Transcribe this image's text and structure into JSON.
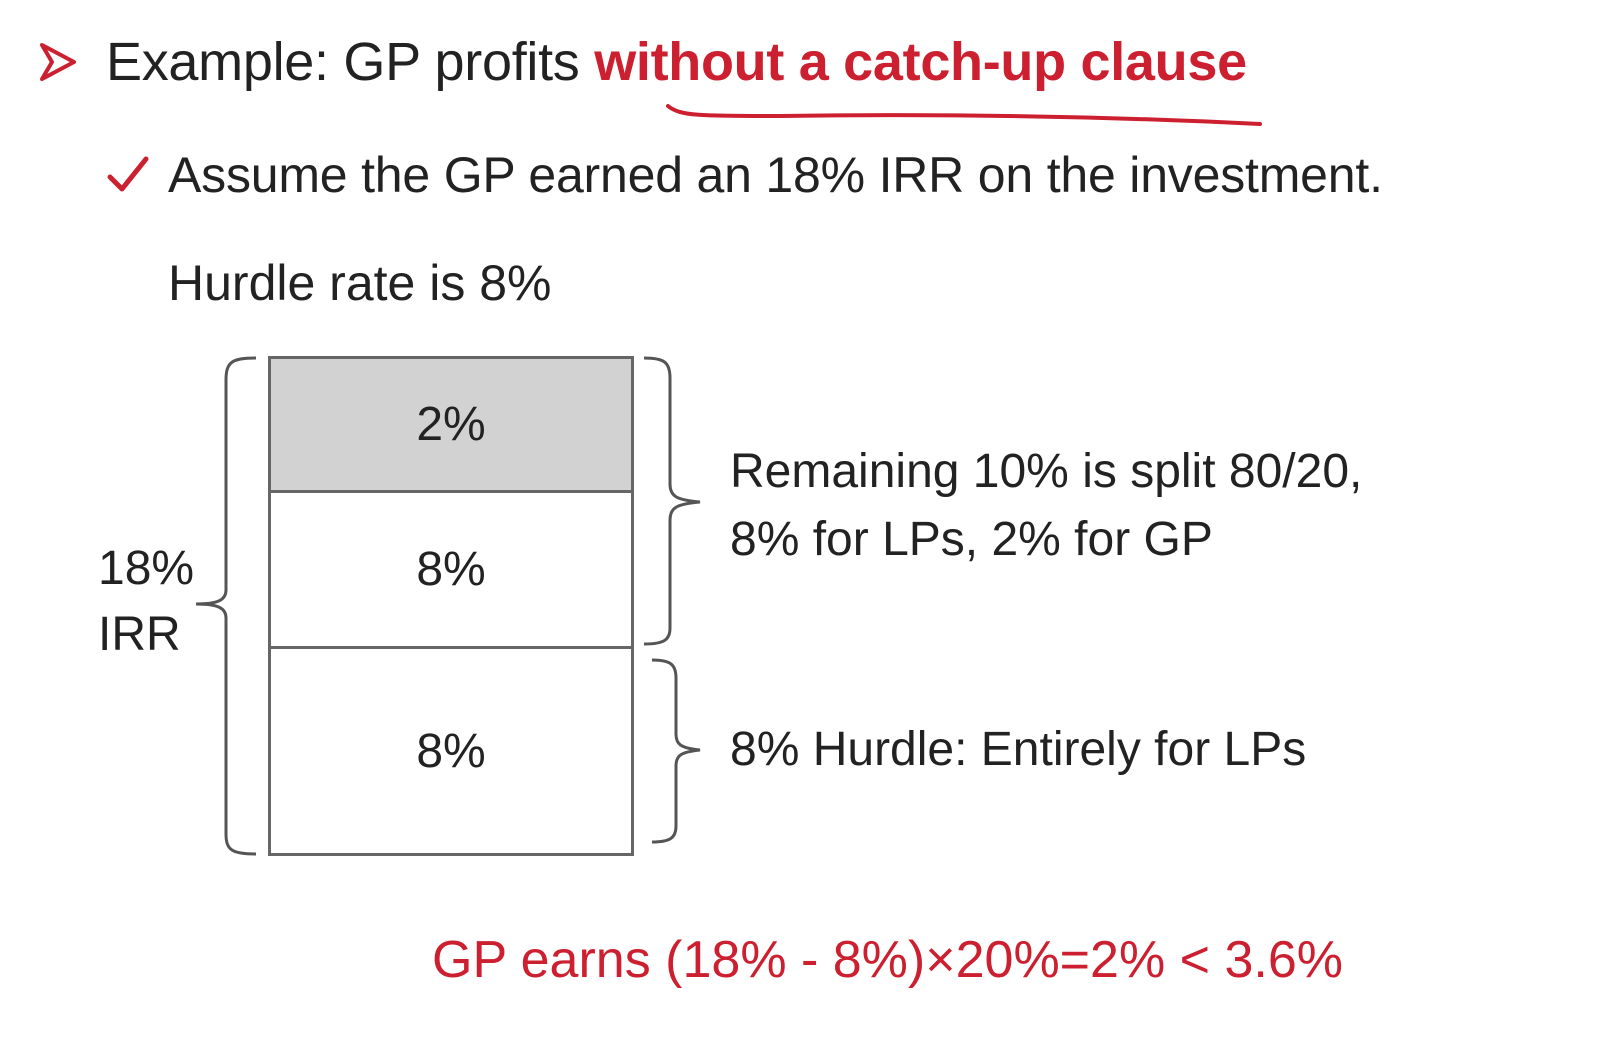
{
  "slide": {
    "bullet1": {
      "prefix": "Example: GP profits ",
      "emphasis": "without a catch-up clause",
      "emphasis_color": "#cc1f2f",
      "icon": "arrow-bullet-icon"
    },
    "bullet2": {
      "text": "Assume the GP earned an 18% IRR on the investment.",
      "icon": "checkmark-icon"
    },
    "hurdle_line": "Hurdle rate is 8%",
    "diagram": {
      "blocks": [
        {
          "label": "2%",
          "fill": "#d2d2d2"
        },
        {
          "label": "8%",
          "fill": "#ffffff"
        },
        {
          "label": "8%",
          "fill": "#ffffff"
        }
      ],
      "irr_label_line1": "18%",
      "irr_label_line2": "IRR",
      "split_note_line1": "Remaining 10% is split 80/20,",
      "split_note_line2": "8% for LPs, 2% for GP",
      "hurdle_note": "8% Hurdle: Entirely for LPs"
    },
    "conclusion": "GP earns (18% - 8%)×20%=2% < 3.6%",
    "accent_color": "#cc1f2f"
  }
}
